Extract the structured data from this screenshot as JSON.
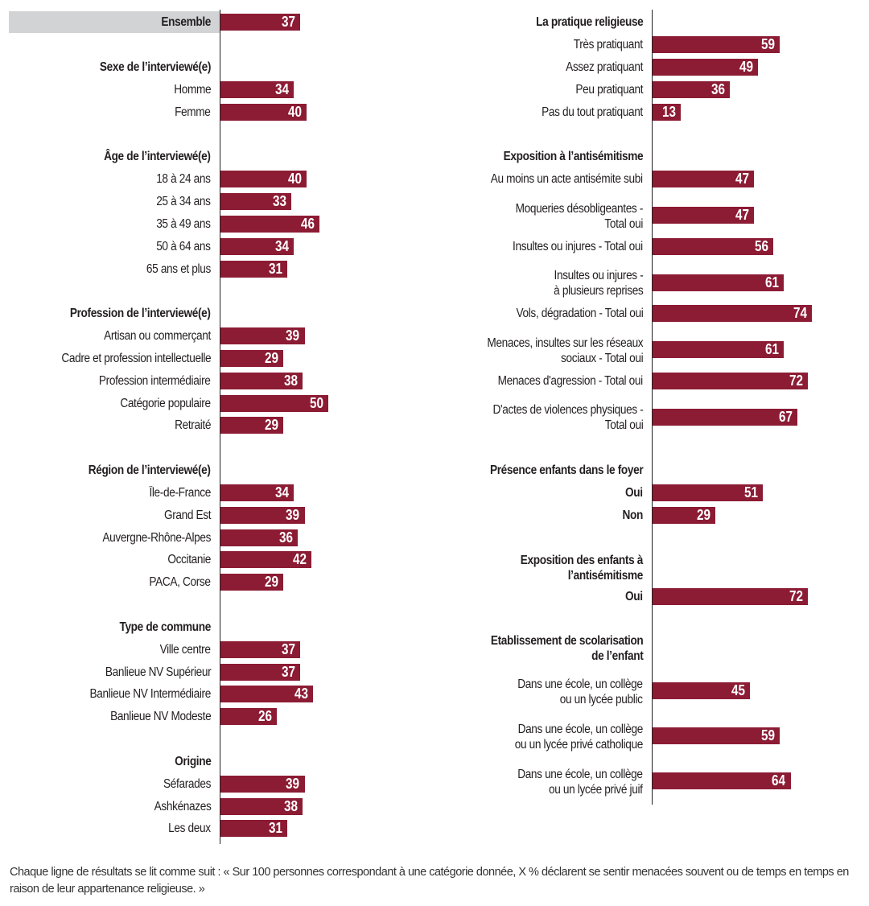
{
  "chart_data": {
    "type": "bar",
    "orientation": "horizontal",
    "title": "",
    "xlabel": "",
    "ylabel": "",
    "xlim": [
      0,
      100
    ],
    "grid": false,
    "bar_color": "#8c1b34",
    "highlight_color": "#d1d3d4",
    "panels": [
      {
        "name": "left",
        "groups": [
          {
            "header": "",
            "items": [
              {
                "label": "Ensemble",
                "value": 37,
                "highlight": true
              }
            ]
          },
          {
            "header": "Sexe de l’interviewé(e)",
            "items": [
              {
                "label": "Homme",
                "value": 34
              },
              {
                "label": "Femme",
                "value": 40
              }
            ]
          },
          {
            "header": "Âge de l’interviewé(e)",
            "items": [
              {
                "label": "18 à 24 ans",
                "value": 40
              },
              {
                "label": "25 à 34 ans",
                "value": 33
              },
              {
                "label": "35 à 49 ans",
                "value": 46
              },
              {
                "label": "50 à 64 ans",
                "value": 34
              },
              {
                "label": "65 ans et plus",
                "value": 31
              }
            ]
          },
          {
            "header": "Profession de l’interviewé(e)",
            "items": [
              {
                "label": "Artisan ou commerçant",
                "value": 39
              },
              {
                "label": "Cadre et profession intellectuelle",
                "value": 29
              },
              {
                "label": "Profession intermédiaire",
                "value": 38
              },
              {
                "label": "Catégorie populaire",
                "value": 50
              },
              {
                "label": "Retraité",
                "value": 29
              }
            ]
          },
          {
            "header": "Région de l’interviewé(e)",
            "items": [
              {
                "label": "Île-de-France",
                "value": 34
              },
              {
                "label": "Grand Est",
                "value": 39
              },
              {
                "label": "Auvergne-Rhône-Alpes",
                "value": 36
              },
              {
                "label": "Occitanie",
                "value": 42
              },
              {
                "label": "PACA, Corse",
                "value": 29
              }
            ]
          },
          {
            "header": "Type de commune",
            "items": [
              {
                "label": "Ville centre",
                "value": 37
              },
              {
                "label": "Banlieue NV Supérieur",
                "value": 37
              },
              {
                "label": "Banlieue NV Intermédiaire",
                "value": 43
              },
              {
                "label": "Banlieue NV Modeste",
                "value": 26
              }
            ]
          },
          {
            "header": "Origine",
            "items": [
              {
                "label": "Séfarades",
                "value": 39
              },
              {
                "label": "Ashkénazes",
                "value": 38
              },
              {
                "label": "Les deux",
                "value": 31
              }
            ]
          }
        ]
      },
      {
        "name": "right",
        "groups": [
          {
            "header": "La pratique religieuse",
            "items": [
              {
                "label": "Très pratiquant",
                "value": 59
              },
              {
                "label": "Assez pratiquant",
                "value": 49
              },
              {
                "label": "Peu pratiquant",
                "value": 36
              },
              {
                "label": "Pas du tout pratiquant",
                "value": 13
              }
            ]
          },
          {
            "header": "Exposition à l’antisémitisme",
            "items": [
              {
                "label": "Au moins un acte antisémite subi",
                "value": 47
              },
              {
                "label": "Moqueries désobligeantes -\nTotal oui",
                "value": 47
              },
              {
                "label": "Insultes ou injures - Total oui",
                "value": 56
              },
              {
                "label": "Insultes ou injures -\nà plusieurs reprises",
                "value": 61
              },
              {
                "label": "Vols, dégradation - Total oui",
                "value": 74
              },
              {
                "label": "Menaces, insultes sur les réseaux\nsociaux - Total oui",
                "value": 61
              },
              {
                "label": "Menaces d'agression - Total oui",
                "value": 72
              },
              {
                "label": "D'actes de violences physiques -\nTotal oui",
                "value": 67
              }
            ]
          },
          {
            "header": "Présence enfants dans le foyer",
            "items": [
              {
                "label": "Oui",
                "value": 51,
                "bold": true
              },
              {
                "label": "Non",
                "value": 29,
                "bold": true
              }
            ]
          },
          {
            "header": "Exposition des enfants à\nl’antisémitisme",
            "items": [
              {
                "label": "Oui",
                "value": 72,
                "bold": true
              }
            ]
          },
          {
            "header": "Etablissement de scolarisation\nde l’enfant",
            "items": [
              {
                "label": "Dans une école, un collège\nou un lycée public",
                "value": 45
              },
              {
                "label": "Dans une école, un collège\nou un lycée privé catholique",
                "value": 59
              },
              {
                "label": "Dans une école, un collège\nou un lycée privé juif",
                "value": 64
              }
            ]
          }
        ]
      }
    ]
  },
  "footnote": "Chaque ligne de résultats se lit comme suit : « Sur 100 personnes correspondant à une catégorie donnée, X % déclarent se sentir menacées souvent ou de temps en temps en raison de leur appartenance religieuse. »"
}
